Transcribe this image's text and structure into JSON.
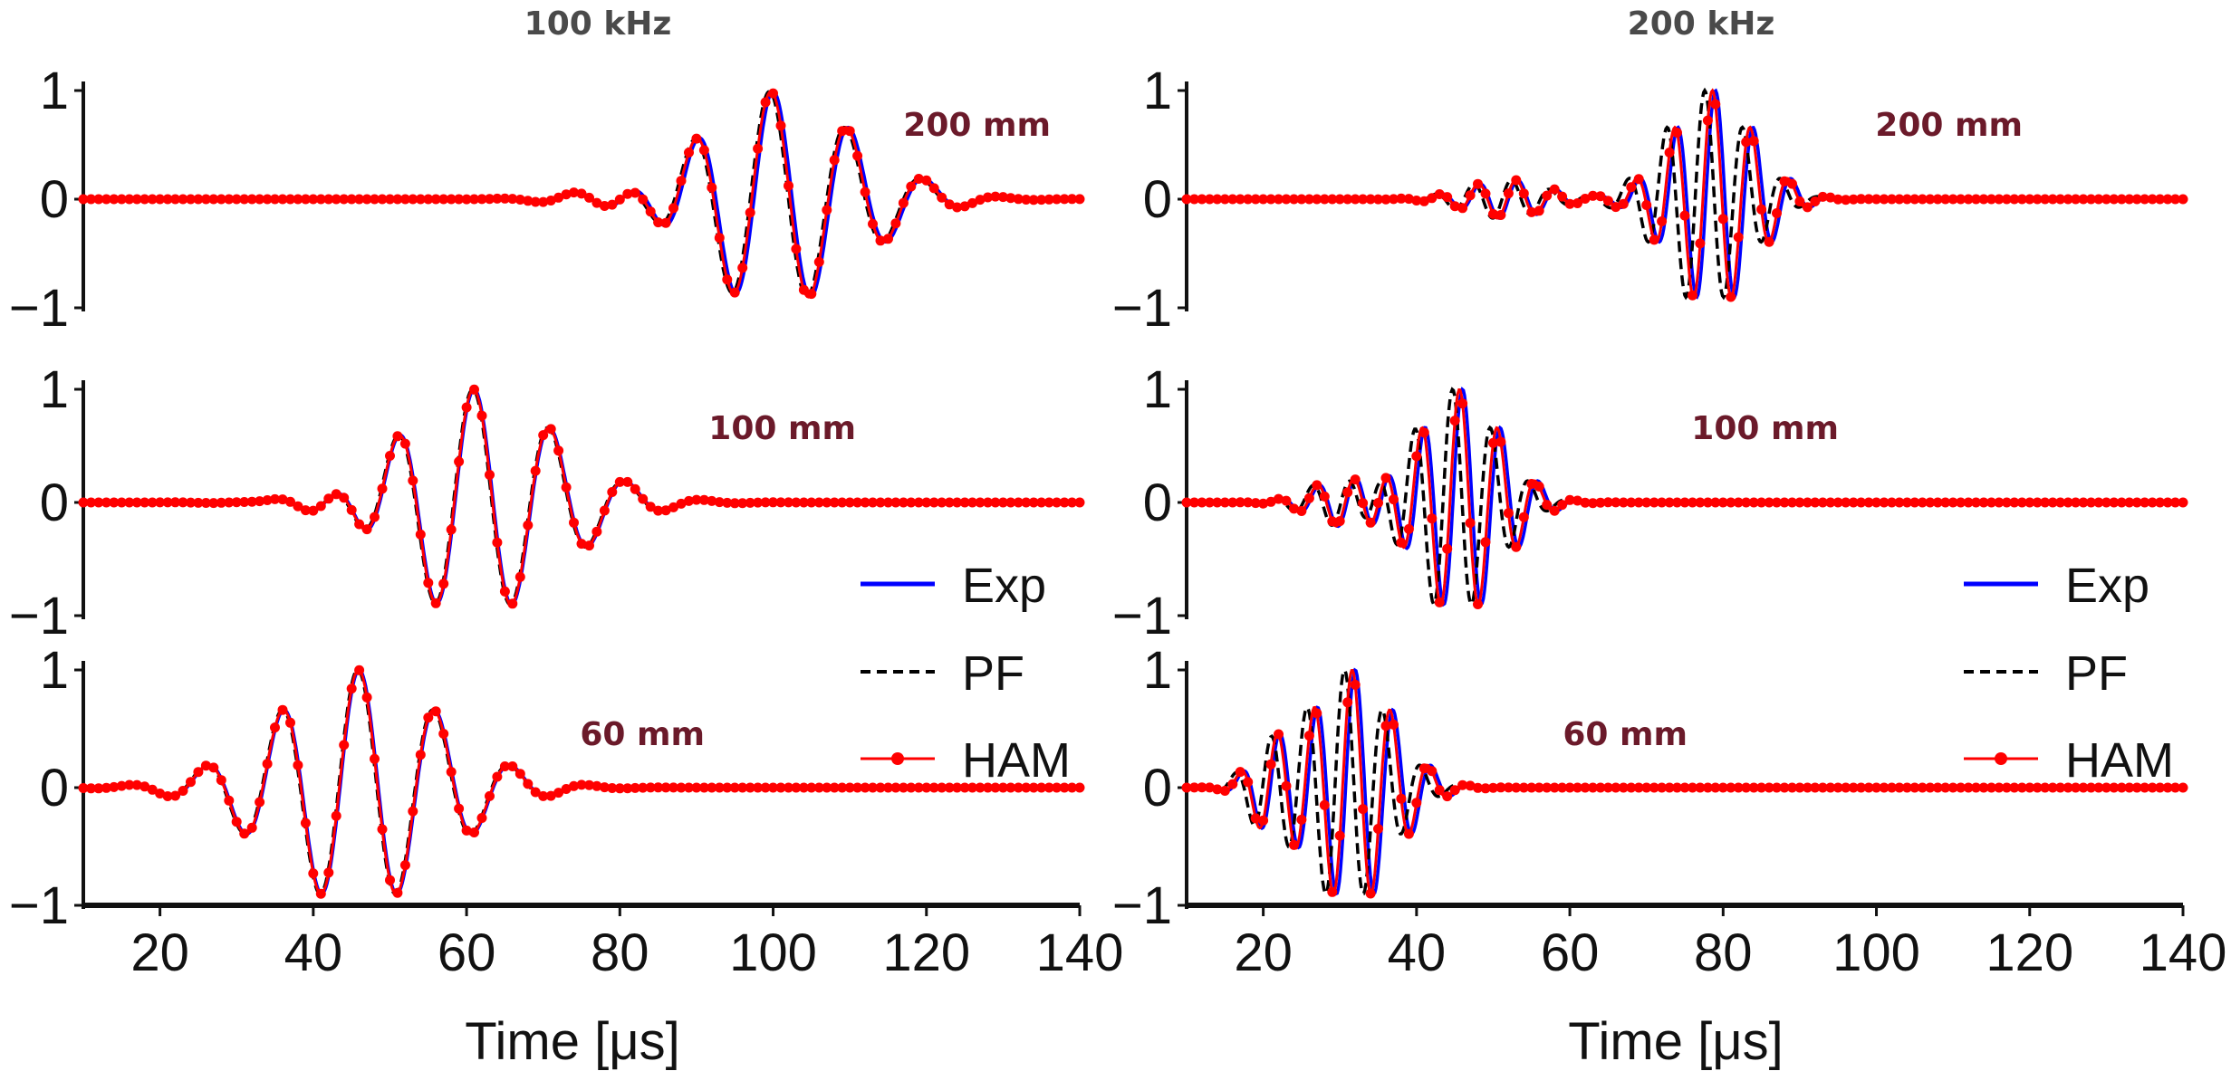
{
  "chart_data": {
    "type": "line",
    "legend": {
      "entries": [
        "Exp",
        "PF",
        "HAM"
      ],
      "placement": "right, lower panels"
    },
    "colors": {
      "Exp": "#0000ff",
      "PF": "#000000",
      "HAM": "#ff0000",
      "label": "#6b1a2a",
      "title": "#4a4a4a"
    },
    "xlabel": "Time [μs]",
    "xlim": [
      10,
      140
    ],
    "xticks": [
      "20",
      "40",
      "60",
      "80",
      "100",
      "120",
      "140"
    ],
    "ylim": [
      -1,
      1
    ],
    "yticks": [
      "1",
      "0",
      "−1"
    ],
    "columns": [
      {
        "title": "100 kHz",
        "freq_khz": 100,
        "panels": [
          {
            "label": "200 mm",
            "exp": {
              "center": 100,
              "cycles": 4,
              "dx": 0
            },
            "pf_shift": -0.5,
            "ham_shift": -0.3,
            "pre": {
              "center": 82,
              "amp": 0.22,
              "cycles": 2
            }
          },
          {
            "label": "100 mm",
            "exp": {
              "center": 61,
              "cycles": 4,
              "dx": 0
            },
            "pf_shift": -0.2,
            "ham_shift": -0.1,
            "pre": {
              "center": 43,
              "amp": 0.25,
              "cycles": 1.5
            }
          },
          {
            "label": "60 mm",
            "exp": {
              "center": 46,
              "cycles": 4,
              "dx": 0
            },
            "pf_shift": -0.2,
            "ham_shift": -0.1,
            "pre": null
          }
        ]
      },
      {
        "title": "200 kHz",
        "freq_khz": 200,
        "panels": [
          {
            "label": "200 mm",
            "exp": {
              "center": 79,
              "cycles": 4,
              "dx": 0
            },
            "pf_shift": -1.4,
            "ham_shift": -0.4,
            "pre": {
              "center": 52,
              "amp": 0.18,
              "cycles": 3
            }
          },
          {
            "label": "100 mm",
            "exp": {
              "center": 46,
              "cycles": 4,
              "dx": 0
            },
            "pf_shift": -1.3,
            "ham_shift": -0.4,
            "pre": {
              "center": 31,
              "amp": 0.22,
              "cycles": 2.5
            }
          },
          {
            "label": "60 mm",
            "exp": {
              "center": 32,
              "cycles": 4,
              "dx": 0
            },
            "pf_shift": -1.4,
            "ham_shift": -0.4,
            "pre": {
              "center": 21,
              "amp": 0.3,
              "cycles": 1.5
            }
          }
        ]
      }
    ]
  }
}
